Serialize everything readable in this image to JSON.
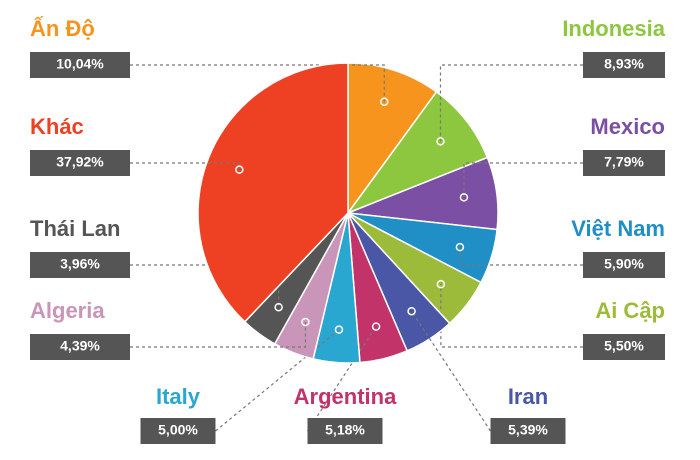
{
  "chart_data": {
    "type": "pie",
    "categories": [
      "Ấn Độ",
      "Indonesia",
      "Mexico",
      "Việt Nam",
      "Ai Cập",
      "Iran",
      "Argentina",
      "Italy",
      "Algeria",
      "Thái Lan",
      "Khác"
    ],
    "values": [
      10.04,
      8.93,
      7.79,
      5.9,
      5.5,
      5.39,
      5.18,
      5.0,
      4.39,
      3.96,
      37.92
    ],
    "value_labels": [
      "10,04%",
      "8,93%",
      "7,79%",
      "5,90%",
      "5,50%",
      "5,39%",
      "5,18%",
      "5,00%",
      "4,39%",
      "3,96%",
      "37,92%"
    ],
    "colors": [
      "#f7941d",
      "#8dc63f",
      "#7b4fa3",
      "#1f8fc6",
      "#9dbb3a",
      "#4a56a6",
      "#c2336a",
      "#2aa7d0",
      "#c995b9",
      "#555555",
      "#ee4123"
    ]
  }
}
